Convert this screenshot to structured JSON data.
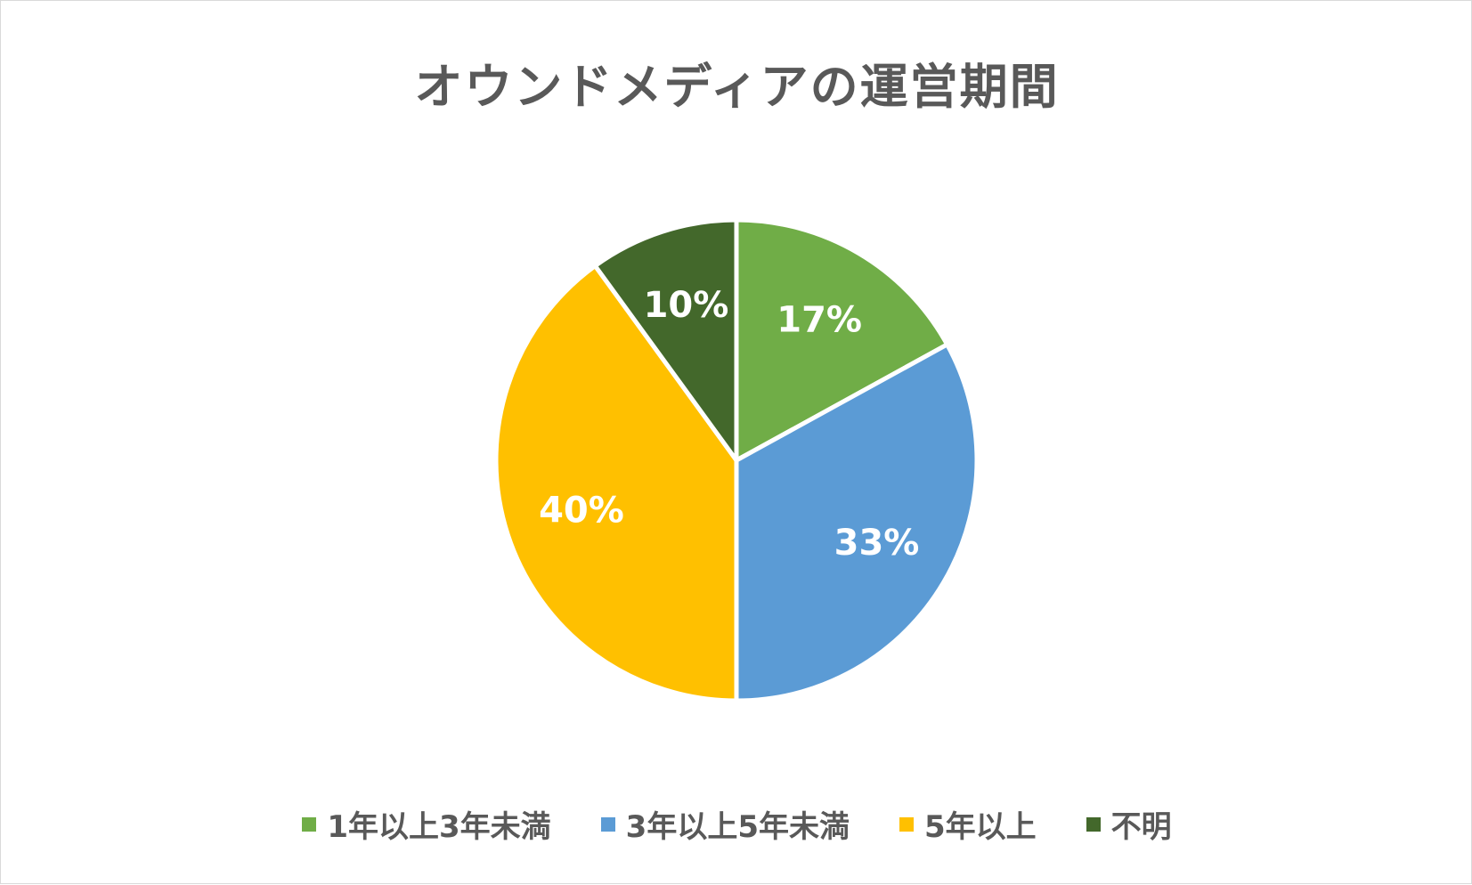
{
  "chart_data": {
    "type": "pie",
    "title": "オウンドメディアの運営期間",
    "categories": [
      "1年以上3年未満",
      "3年以上5年未満",
      "5年以上",
      "不明"
    ],
    "values": [
      17,
      33,
      40,
      10
    ],
    "labels": [
      "17%",
      "33%",
      "40%",
      "10%"
    ],
    "colors": [
      "#70ad47",
      "#5b9bd5",
      "#ffc000",
      "#43682b"
    ],
    "legend_position": "bottom"
  }
}
